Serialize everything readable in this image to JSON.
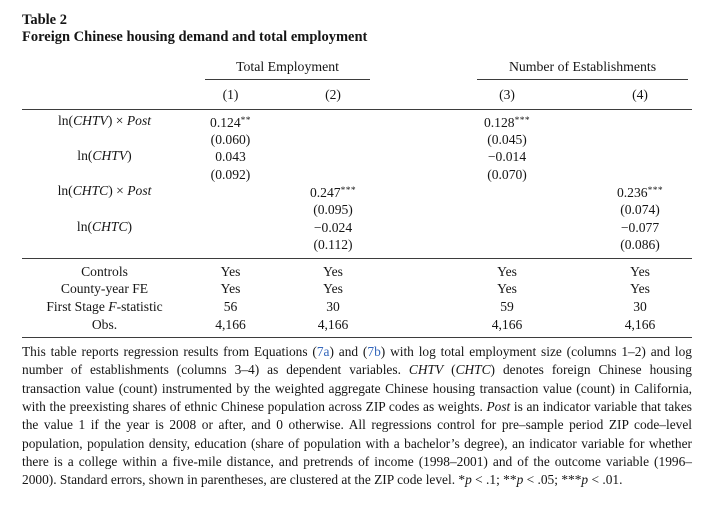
{
  "title": {
    "tag": "Table 2",
    "subtitle": "Foreign Chinese housing demand and total employment"
  },
  "colors": {
    "link_blue": "#3366bb",
    "rule": "#3d3d3d",
    "text": "#151515"
  },
  "table": {
    "groups": [
      {
        "label": "Total Employment"
      },
      {
        "label": "Number of Establishments"
      }
    ],
    "col_numbers": [
      "(1)",
      "(2)",
      "(3)",
      "(4)"
    ],
    "coef_rows": [
      {
        "label": [
          {
            "t": "ln("
          },
          {
            "t": "CHTV",
            "i": 1
          },
          {
            "t": ") × "
          },
          {
            "t": "Post",
            "i": 1
          }
        ],
        "cells": [
          {
            "v": "0.124",
            "stars": "**",
            "se": "(0.060)"
          },
          null,
          {
            "v": "0.128",
            "stars": "***",
            "se": "(0.045)"
          },
          null
        ]
      },
      {
        "label": [
          {
            "t": "ln("
          },
          {
            "t": "CHTV",
            "i": 1
          },
          {
            "t": ")"
          }
        ],
        "cells": [
          {
            "v": "0.043",
            "stars": "",
            "se": "(0.092)"
          },
          null,
          {
            "v": "−0.014",
            "stars": "",
            "se": "(0.070)"
          },
          null
        ]
      },
      {
        "label": [
          {
            "t": "ln("
          },
          {
            "t": "CHTC",
            "i": 1
          },
          {
            "t": ") × "
          },
          {
            "t": "Post",
            "i": 1
          }
        ],
        "cells": [
          null,
          {
            "v": "0.247",
            "stars": "***",
            "se": "(0.095)"
          },
          null,
          {
            "v": "0.236",
            "stars": "***",
            "se": "(0.074)"
          }
        ]
      },
      {
        "label": [
          {
            "t": "ln("
          },
          {
            "t": "CHTC",
            "i": 1
          },
          {
            "t": ")"
          }
        ],
        "cells": [
          null,
          {
            "v": "−0.024",
            "stars": "",
            "se": "(0.112)"
          },
          null,
          {
            "v": "−0.077",
            "stars": "",
            "se": "(0.086)"
          }
        ]
      }
    ],
    "stat_rows": [
      {
        "label": [
          {
            "t": "Controls"
          }
        ],
        "cells": [
          "Yes",
          "Yes",
          "Yes",
          "Yes"
        ]
      },
      {
        "label": [
          {
            "t": "County-year FE"
          }
        ],
        "cells": [
          "Yes",
          "Yes",
          "Yes",
          "Yes"
        ]
      },
      {
        "label": [
          {
            "t": "First Stage "
          },
          {
            "t": "F",
            "i": 1
          },
          {
            "t": "-statistic"
          }
        ],
        "cells": [
          "56",
          "30",
          "59",
          "30"
        ]
      },
      {
        "label": [
          {
            "t": "Obs."
          }
        ],
        "cells": [
          "4,166",
          "4,166",
          "4,166",
          "4,166"
        ]
      }
    ]
  },
  "note": {
    "segments": [
      {
        "t": "This table reports regression results from Equations ("
      },
      {
        "t": "7a",
        "link": 1
      },
      {
        "t": ") and ("
      },
      {
        "t": "7b",
        "link": 1
      },
      {
        "t": ") with log total employment size (columns 1–2) and log number of establishments (columns 3–4) as dependent variables. "
      },
      {
        "t": "CHTV",
        "i": 1
      },
      {
        "t": " ("
      },
      {
        "t": "CHTC",
        "i": 1
      },
      {
        "t": ") denotes foreign Chinese housing transaction value (count) instrumented by the weighted aggregate Chinese housing transaction value (count) in California, with the preexisting shares of ethnic Chinese population across ZIP codes as weights. "
      },
      {
        "t": "Post",
        "i": 1
      },
      {
        "t": " is an indicator variable that takes the value 1 if the year is 2008 or after, and 0 otherwise. All regressions control for pre–sample period ZIP code–level population, population density, education (share of population with a bachelor’s degree), an indicator variable for whether there is a college within a five-mile distance, and pretrends of income (1998–2001) and of the outcome variable (1996–2000). Standard errors, shown in parentheses, are clustered at the ZIP code level. *"
      },
      {
        "t": "p",
        "i": 1
      },
      {
        "t": " < .1; **"
      },
      {
        "t": "p",
        "i": 1
      },
      {
        "t": " < .05; ***"
      },
      {
        "t": "p",
        "i": 1
      },
      {
        "t": " < .01."
      }
    ]
  }
}
